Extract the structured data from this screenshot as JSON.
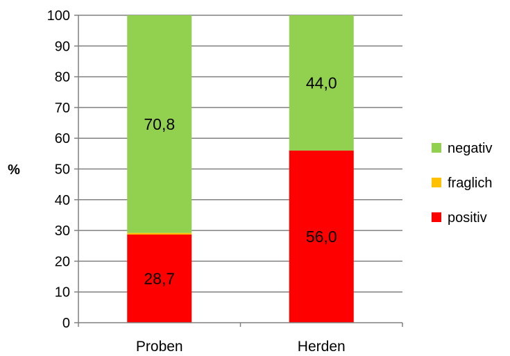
{
  "chart_data": {
    "type": "bar",
    "stacked": true,
    "categories": [
      "Proben",
      "Herden"
    ],
    "series": [
      {
        "name": "positiv",
        "values": [
          28.7,
          56.0
        ],
        "color": "#ff0000",
        "labels": [
          "28,7",
          "56,0"
        ]
      },
      {
        "name": "fraglich",
        "values": [
          0.5,
          0.0
        ],
        "color": "#ffc000",
        "labels": [
          "",
          ""
        ]
      },
      {
        "name": "negativ",
        "values": [
          70.8,
          44.0
        ],
        "color": "#92d050",
        "labels": [
          "70,8",
          "44,0"
        ]
      }
    ],
    "ylabel": "%",
    "xlabel": "",
    "ylim": [
      0,
      100
    ],
    "yticks": [
      0,
      10,
      20,
      30,
      40,
      50,
      60,
      70,
      80,
      90,
      100
    ],
    "grid": true,
    "gridColor": "#808080",
    "legend": {
      "placement": "right",
      "entries": [
        "negativ",
        "fraglich",
        "positiv"
      ]
    }
  }
}
